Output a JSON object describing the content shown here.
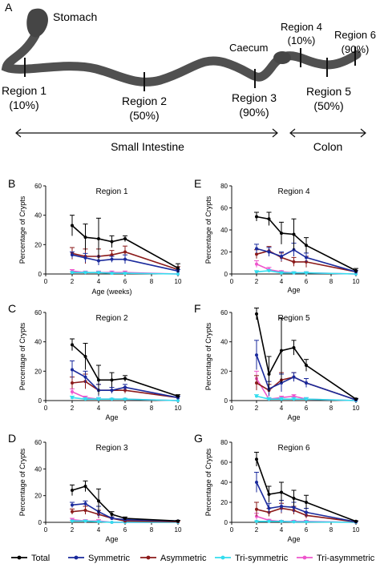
{
  "figure": {
    "panel_labels": [
      "A",
      "B",
      "C",
      "D",
      "E",
      "F",
      "G"
    ],
    "diagram": {
      "stomach_label": "Stomach",
      "caecum_label": "Caecum",
      "regions": [
        {
          "name": "Region 1",
          "pct": "(10%)"
        },
        {
          "name": "Region 2",
          "pct": "(50%)"
        },
        {
          "name": "Region 3",
          "pct": "(90%)"
        },
        {
          "name": "Region 4",
          "pct": "(10%)"
        },
        {
          "name": "Region 5",
          "pct": "(50%)"
        },
        {
          "name": "Region 6",
          "pct": "(90%)"
        }
      ],
      "small_intestine_label": "Small Intestine",
      "colon_label": "Colon"
    },
    "legend": [
      "Total",
      "Symmetric",
      "Asymmetric",
      "Tri-symmetric",
      "Tri-asymmetric"
    ],
    "colors": {
      "Total": "#000000",
      "Symmetric": "#1a2a9c",
      "Asymmetric": "#8b1a1a",
      "Tri-symmetric": "#33ddee",
      "Tri-asymmetric": "#ee55cc"
    }
  },
  "chart_data": [
    {
      "panel": "B",
      "type": "line",
      "title": "Region 1",
      "xlabel": "Age (weeks)",
      "ylabel": "Percentage of Crypts",
      "xlim": [
        0,
        10
      ],
      "ylim": [
        0,
        60
      ],
      "xticks": [
        0,
        2,
        4,
        6,
        8,
        10
      ],
      "yticks": [
        0,
        20,
        40,
        60
      ],
      "x": [
        2,
        3,
        4,
        5,
        6,
        10
      ],
      "series": [
        {
          "name": "Total",
          "values": [
            33,
            25,
            24,
            22,
            24,
            4
          ],
          "err": [
            7,
            9,
            14,
            4,
            2,
            3
          ]
        },
        {
          "name": "Symmetric",
          "values": [
            13,
            11,
            9,
            10,
            10,
            2
          ],
          "err": [
            2,
            3,
            3,
            2,
            3,
            1
          ]
        },
        {
          "name": "Asymmetric",
          "values": [
            14,
            12,
            12,
            13,
            15,
            3
          ],
          "err": [
            4,
            5,
            5,
            3,
            4,
            2
          ]
        },
        {
          "name": "Tri-symmetric",
          "values": [
            1,
            1,
            1,
            0.5,
            0.5,
            0
          ],
          "err": [
            0.5,
            0.5,
            0.5,
            0.5,
            0.5,
            0
          ]
        },
        {
          "name": "Tri-asymmetric",
          "values": [
            2,
            1,
            1,
            1,
            1,
            0
          ],
          "err": [
            1,
            1,
            1,
            1,
            1,
            0
          ]
        }
      ]
    },
    {
      "panel": "C",
      "type": "line",
      "title": "Region 2",
      "xlabel": "Age",
      "ylabel": "Percentage of Crypts",
      "xlim": [
        0,
        10
      ],
      "ylim": [
        0,
        60
      ],
      "xticks": [
        0,
        2,
        4,
        6,
        8,
        10
      ],
      "yticks": [
        0,
        20,
        40,
        60
      ],
      "x": [
        2,
        3,
        4,
        5,
        6,
        10
      ],
      "series": [
        {
          "name": "Total",
          "values": [
            38,
            30,
            14,
            14,
            15,
            3
          ],
          "err": [
            4,
            9,
            10,
            5,
            2,
            1
          ]
        },
        {
          "name": "Symmetric",
          "values": [
            21,
            16,
            7,
            7,
            9,
            2
          ],
          "err": [
            6,
            4,
            4,
            2,
            2,
            1
          ]
        },
        {
          "name": "Asymmetric",
          "values": [
            12,
            13,
            7,
            7,
            7,
            2
          ],
          "err": [
            4,
            5,
            4,
            2,
            2,
            1
          ]
        },
        {
          "name": "Tri-symmetric",
          "values": [
            2,
            1,
            1,
            1,
            1,
            0
          ],
          "err": [
            1,
            1,
            1,
            0.5,
            0.5,
            0
          ]
        },
        {
          "name": "Tri-asymmetric",
          "values": [
            6,
            2,
            1,
            1,
            1,
            0
          ],
          "err": [
            2,
            1,
            1,
            0.5,
            0.5,
            0
          ]
        }
      ]
    },
    {
      "panel": "D",
      "type": "line",
      "title": "Region 3",
      "xlabel": "Age",
      "ylabel": "Percentage of Crypts",
      "xlim": [
        0,
        10
      ],
      "ylim": [
        0,
        60
      ],
      "xticks": [
        0,
        2,
        4,
        6,
        8,
        10
      ],
      "yticks": [
        0,
        20,
        40,
        60
      ],
      "x": [
        2,
        3,
        4,
        5,
        6,
        10
      ],
      "series": [
        {
          "name": "Total",
          "values": [
            24,
            27,
            16,
            6,
            3,
            1
          ],
          "err": [
            4,
            4,
            9,
            2,
            1,
            0.5
          ]
        },
        {
          "name": "Symmetric",
          "values": [
            13,
            14,
            8,
            3,
            2,
            1
          ],
          "err": [
            2,
            2,
            4,
            1,
            1,
            0.5
          ]
        },
        {
          "name": "Asymmetric",
          "values": [
            8,
            9,
            6,
            3,
            1,
            0.5
          ],
          "err": [
            2,
            3,
            3,
            1,
            1,
            0.5
          ]
        },
        {
          "name": "Tri-symmetric",
          "values": [
            1,
            1,
            0.5,
            0,
            0,
            0
          ],
          "err": [
            0.5,
            0.5,
            0.5,
            0,
            0,
            0
          ]
        },
        {
          "name": "Tri-asymmetric",
          "values": [
            2,
            1,
            1,
            0,
            0,
            0
          ],
          "err": [
            1,
            1,
            1,
            0,
            0,
            0
          ]
        }
      ]
    },
    {
      "panel": "E",
      "type": "line",
      "title": "Region 4",
      "xlabel": "Age",
      "ylabel": "Percentage of Crypts",
      "xlim": [
        0,
        10
      ],
      "ylim": [
        0,
        80
      ],
      "xticks": [
        0,
        2,
        4,
        6,
        8,
        10
      ],
      "yticks": [
        0,
        20,
        40,
        60,
        80
      ],
      "x": [
        2,
        3,
        4,
        5,
        6,
        10
      ],
      "series": [
        {
          "name": "Total",
          "values": [
            52,
            50,
            37,
            36,
            26,
            3
          ],
          "err": [
            4,
            6,
            10,
            14,
            7,
            2
          ]
        },
        {
          "name": "Symmetric",
          "values": [
            23,
            20,
            16,
            22,
            15,
            2
          ],
          "err": [
            4,
            4,
            4,
            6,
            4,
            1
          ]
        },
        {
          "name": "Asymmetric",
          "values": [
            18,
            21,
            15,
            11,
            11,
            2
          ],
          "err": [
            4,
            4,
            4,
            4,
            5,
            1
          ]
        },
        {
          "name": "Tri-symmetric",
          "values": [
            2,
            3,
            1,
            1,
            1,
            0
          ],
          "err": [
            1,
            1,
            1,
            1,
            1,
            0
          ]
        },
        {
          "name": "Tri-asymmetric",
          "values": [
            9,
            4,
            2,
            1,
            1,
            0
          ],
          "err": [
            3,
            2,
            1,
            1,
            1,
            0
          ]
        }
      ]
    },
    {
      "panel": "F",
      "type": "line",
      "title": "Region 5",
      "xlabel": "Age",
      "ylabel": "Percentage of Crypts",
      "xlim": [
        0,
        10
      ],
      "ylim": [
        0,
        60
      ],
      "xticks": [
        0,
        2,
        4,
        6,
        8,
        10
      ],
      "yticks": [
        0,
        20,
        40,
        60
      ],
      "x": [
        2,
        3,
        4,
        5,
        6,
        10
      ],
      "series": [
        {
          "name": "Total",
          "values": [
            59,
            18,
            34,
            36,
            24,
            1
          ],
          "err": [
            4,
            12,
            22,
            5,
            4,
            0.5
          ]
        },
        {
          "name": "Symmetric",
          "values": [
            31,
            8,
            12,
            16,
            12,
            0.5
          ],
          "err": [
            10,
            5,
            6,
            3,
            3,
            0.5
          ]
        },
        {
          "name": "Asymmetric",
          "values": [
            12,
            7,
            14,
            16,
            12,
            0.5
          ],
          "err": [
            5,
            4,
            5,
            3,
            3,
            0.5
          ]
        },
        {
          "name": "Tri-symmetric",
          "values": [
            3,
            1,
            1,
            1,
            1,
            0
          ],
          "err": [
            1,
            1,
            1,
            1,
            1,
            0
          ]
        },
        {
          "name": "Tri-asymmetric",
          "values": [
            15,
            1,
            2,
            3,
            1,
            0
          ],
          "err": [
            5,
            1,
            1,
            1,
            1,
            0
          ]
        }
      ]
    },
    {
      "panel": "G",
      "type": "line",
      "title": "Region 6",
      "xlabel": "Age",
      "ylabel": "Percentage of Crypts",
      "xlim": [
        0,
        10
      ],
      "ylim": [
        0,
        80
      ],
      "xticks": [
        0,
        2,
        4,
        6,
        8,
        10
      ],
      "yticks": [
        0,
        20,
        40,
        60,
        80
      ],
      "x": [
        2,
        3,
        4,
        5,
        6,
        10
      ],
      "series": [
        {
          "name": "Total",
          "values": [
            63,
            28,
            30,
            24,
            20,
            1
          ],
          "err": [
            7,
            8,
            10,
            8,
            7,
            0.5
          ]
        },
        {
          "name": "Symmetric",
          "values": [
            40,
            14,
            16,
            15,
            10,
            0.5
          ],
          "err": [
            10,
            5,
            6,
            5,
            4,
            0.5
          ]
        },
        {
          "name": "Asymmetric",
          "values": [
            13,
            10,
            14,
            12,
            7,
            0.5
          ],
          "err": [
            7,
            4,
            5,
            4,
            3,
            0.5
          ]
        },
        {
          "name": "Tri-symmetric",
          "values": [
            1,
            1,
            1,
            0.5,
            0.5,
            0
          ],
          "err": [
            0.5,
            0.5,
            0.5,
            0.5,
            0.5,
            0
          ]
        },
        {
          "name": "Tri-asymmetric",
          "values": [
            6,
            2,
            1,
            1,
            1,
            0
          ],
          "err": [
            3,
            1,
            1,
            1,
            1,
            0
          ]
        }
      ]
    }
  ]
}
